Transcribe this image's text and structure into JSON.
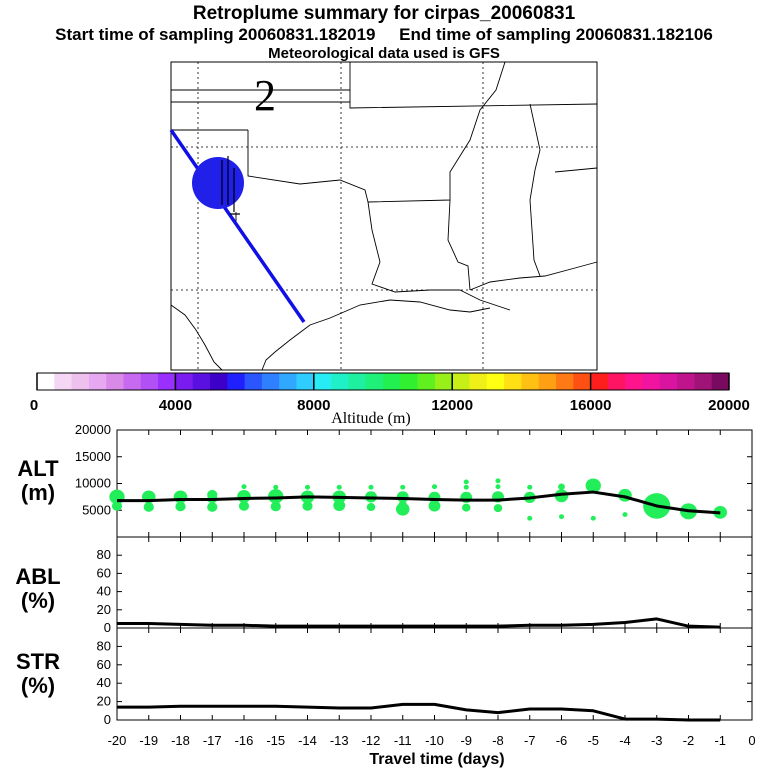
{
  "header": {
    "title": "Retroplume summary for cirpas_20060831",
    "start_label": "Start time of sampling 20060831.182019",
    "end_label": "End time of sampling 20060831.182106",
    "met_label": "Meteorological data used is GFS"
  },
  "map": {
    "marker_label": "2"
  },
  "colorbar": {
    "xlabel": "Altitude (m)",
    "ticks": [
      "0",
      "4000",
      "8000",
      "12000",
      "16000",
      "20000"
    ],
    "colors": [
      "#ffffff",
      "#f5d6f5",
      "#eec0ee",
      "#e6a8f0",
      "#d98ae8",
      "#c86af0",
      "#b050f5",
      "#9a30ff",
      "#7a1cf0",
      "#5a10e0",
      "#3c00c8",
      "#2020ff",
      "#2a55ff",
      "#2f80ff",
      "#30a8ff",
      "#2fccff",
      "#28ecf5",
      "#20f0c8",
      "#1ef0a0",
      "#1ef07a",
      "#22f050",
      "#30f030",
      "#60f020",
      "#98f018",
      "#c8f018",
      "#eef018",
      "#ffff14",
      "#ffe014",
      "#ffc014",
      "#ffa014",
      "#ff7a14",
      "#ff5014",
      "#ff1e1e",
      "#ff1464",
      "#ff148c",
      "#f014a0",
      "#d814a0",
      "#c0148c",
      "#a01478",
      "#7a0a60"
    ]
  },
  "icons": {
    "sample_marker": "sampling-location-icon"
  },
  "chart_data": [
    {
      "type": "line",
      "panel": "ALT",
      "ylabel": "ALT (m)",
      "x": [
        -20,
        -19,
        -18,
        -17,
        -16,
        -15,
        -14,
        -13,
        -12,
        -11,
        -10,
        -9,
        -8,
        -7,
        -6,
        -5,
        -4,
        -3,
        -2,
        -1
      ],
      "values": [
        6800,
        6800,
        7000,
        7000,
        7200,
        7300,
        7500,
        7400,
        7300,
        7200,
        7000,
        6900,
        6900,
        7300,
        8000,
        8400,
        7500,
        5800,
        4900,
        4500
      ],
      "ylim": [
        0,
        20000
      ],
      "yticks": [
        "20000",
        "15000",
        "10000",
        "5000"
      ],
      "scatter_series": [
        {
          "name": "plume particles",
          "color": "#22ee5a",
          "x": [
            -20,
            -20,
            -19,
            -19,
            -18,
            -18,
            -17,
            -17,
            -17,
            -16,
            -16,
            -16,
            -15,
            -15,
            -15,
            -14,
            -14,
            -14,
            -13,
            -13,
            -13,
            -12,
            -12,
            -12,
            -11,
            -11,
            -11,
            -11,
            -10,
            -10,
            -10,
            -9,
            -9,
            -9,
            -9,
            -8,
            -8,
            -8,
            -8,
            -7,
            -7,
            -7,
            -6,
            -6,
            -6,
            -5,
            -5,
            -4,
            -4,
            -3,
            -2,
            -1
          ],
          "y": [
            7500,
            5800,
            7500,
            5600,
            7500,
            5700,
            7900,
            7200,
            5600,
            9400,
            7600,
            5800,
            9300,
            7600,
            5700,
            9300,
            7500,
            5800,
            9300,
            7500,
            5900,
            9300,
            7500,
            5600,
            9300,
            7500,
            6000,
            5200,
            9400,
            7400,
            5800,
            10300,
            9300,
            7400,
            5500,
            10500,
            9400,
            7500,
            5400,
            9300,
            7400,
            3500,
            9400,
            7700,
            3800,
            9600,
            3500,
            7800,
            4200,
            5800,
            4800,
            4600
          ],
          "sizes": [
            9,
            6,
            8,
            6,
            8,
            6,
            6,
            6,
            6,
            3,
            8,
            6,
            3,
            9,
            6,
            3,
            8,
            6,
            3,
            8,
            7,
            3,
            7,
            5,
            3,
            7,
            5,
            8,
            3,
            7,
            7,
            3,
            3,
            7,
            5,
            3,
            3,
            7,
            5,
            3,
            7,
            3,
            4,
            8,
            3,
            9,
            3,
            8,
            3,
            16,
            10,
            8
          ]
        }
      ]
    },
    {
      "type": "line",
      "panel": "ABL",
      "ylabel": "ABL (%)",
      "x": [
        -20,
        -19,
        -18,
        -17,
        -16,
        -15,
        -14,
        -13,
        -12,
        -11,
        -10,
        -9,
        -8,
        -7,
        -6,
        -5,
        -4,
        -3,
        -2,
        -1
      ],
      "values": [
        5,
        5,
        4,
        3,
        3,
        2,
        2,
        2,
        2,
        2,
        2,
        2,
        2,
        3,
        3,
        4,
        6,
        10,
        2,
        1
      ],
      "ylim": [
        0,
        100
      ],
      "yticks": [
        "80",
        "60",
        "40",
        "20",
        "0"
      ]
    },
    {
      "type": "line",
      "panel": "STR",
      "ylabel": "STR (%)",
      "x": [
        -20,
        -19,
        -18,
        -17,
        -16,
        -15,
        -14,
        -13,
        -12,
        -11,
        -10,
        -9,
        -8,
        -7,
        -6,
        -5,
        -4,
        -3,
        -2,
        -1
      ],
      "values": [
        14,
        14,
        15,
        15,
        15,
        15,
        14,
        13,
        13,
        17,
        17,
        11,
        8,
        12,
        12,
        10,
        1,
        1,
        0,
        0
      ],
      "ylim": [
        0,
        100
      ],
      "yticks": [
        "80",
        "60",
        "40",
        "20",
        "0"
      ],
      "xlabel": "Travel time (days)",
      "xticks": [
        "-20",
        "-19",
        "-18",
        "-17",
        "-16",
        "-15",
        "-14",
        "-13",
        "-12",
        "-11",
        "-10",
        "-9",
        "-8",
        "-7",
        "-6",
        "-5",
        "-4",
        "-3",
        "-2",
        "-1",
        "0"
      ]
    }
  ]
}
